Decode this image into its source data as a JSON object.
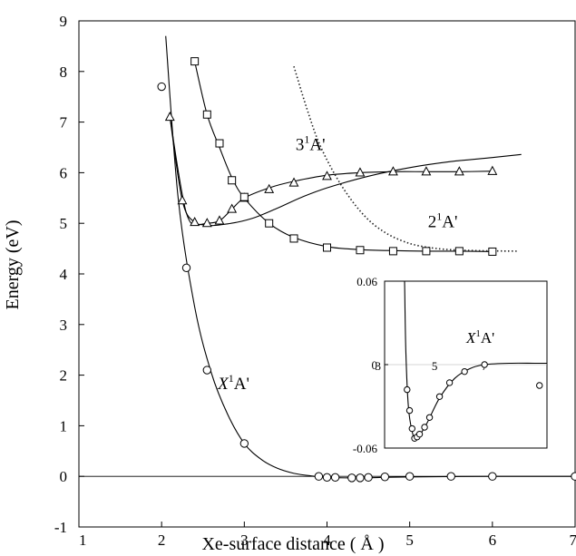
{
  "chart_data": {
    "type": "scatter",
    "xlabel": "Xe-surface distance ( Å )",
    "ylabel": "Energy (eV)",
    "xlim": [
      1,
      7
    ],
    "ylim": [
      -1,
      9
    ],
    "x_ticks": [
      "1",
      "2",
      "3",
      "4",
      "5",
      "6",
      "7"
    ],
    "y_ticks": [
      "-1",
      "0",
      "1",
      "2",
      "3",
      "4",
      "5",
      "6",
      "7",
      "8",
      "9"
    ],
    "grid": false,
    "legend": "none",
    "series": [
      {
        "name": "X¹A'",
        "marker": "circle",
        "points": [
          [
            2.0,
            7.7
          ],
          [
            2.3,
            4.12
          ],
          [
            2.55,
            2.1
          ],
          [
            3.0,
            0.65
          ],
          [
            3.9,
            0.0
          ],
          [
            4.0,
            -0.02
          ],
          [
            4.1,
            -0.02
          ],
          [
            4.3,
            -0.03
          ],
          [
            4.4,
            -0.03
          ],
          [
            4.5,
            -0.02
          ],
          [
            4.7,
            -0.01
          ],
          [
            5.0,
            0.0
          ],
          [
            5.5,
            0.0
          ],
          [
            6.0,
            0.0
          ],
          [
            7.0,
            0.0
          ]
        ],
        "fit": [
          [
            2.05,
            8.7
          ],
          [
            2.2,
            5.5
          ],
          [
            2.4,
            3.35
          ],
          [
            2.6,
            2.05
          ],
          [
            2.8,
            1.22
          ],
          [
            3.0,
            0.65
          ],
          [
            3.2,
            0.34
          ],
          [
            3.4,
            0.16
          ],
          [
            3.6,
            0.06
          ],
          [
            3.8,
            0.01
          ],
          [
            4.0,
            -0.02
          ],
          [
            4.4,
            -0.03
          ],
          [
            5.0,
            -0.01
          ],
          [
            6.0,
            0.0
          ],
          [
            7.0,
            0.0
          ]
        ]
      },
      {
        "name": "3¹A'",
        "marker": "triangle",
        "points": [
          [
            2.1,
            7.1
          ],
          [
            2.25,
            5.45
          ],
          [
            2.4,
            5.02
          ],
          [
            2.55,
            5.0
          ],
          [
            2.7,
            5.05
          ],
          [
            2.85,
            5.28
          ],
          [
            3.0,
            5.5
          ],
          [
            3.3,
            5.67
          ],
          [
            3.6,
            5.8
          ],
          [
            4.0,
            5.93
          ],
          [
            4.4,
            6.0
          ],
          [
            4.8,
            6.02
          ],
          [
            5.2,
            6.02
          ],
          [
            5.6,
            6.02
          ],
          [
            6.0,
            6.03
          ]
        ],
        "fit": [
          [
            2.1,
            7.1
          ],
          [
            2.25,
            5.45
          ],
          [
            2.4,
            5.02
          ],
          [
            2.55,
            5.0
          ],
          [
            2.7,
            5.05
          ],
          [
            2.85,
            5.28
          ],
          [
            3.0,
            5.5
          ],
          [
            3.3,
            5.7
          ],
          [
            3.6,
            5.83
          ],
          [
            4.0,
            5.95
          ],
          [
            4.4,
            6.0
          ],
          [
            4.8,
            6.02
          ],
          [
            5.2,
            6.02
          ],
          [
            5.6,
            6.02
          ],
          [
            6.0,
            6.03
          ]
        ]
      },
      {
        "name": "2¹A'",
        "marker": "square",
        "points": [
          [
            2.4,
            8.2
          ],
          [
            2.55,
            7.15
          ],
          [
            2.7,
            6.58
          ],
          [
            2.85,
            5.85
          ],
          [
            3.0,
            5.52
          ],
          [
            3.3,
            5.0
          ],
          [
            3.6,
            4.7
          ],
          [
            4.0,
            4.52
          ],
          [
            4.4,
            4.47
          ],
          [
            4.8,
            4.45
          ],
          [
            5.2,
            4.45
          ],
          [
            5.6,
            4.45
          ],
          [
            6.0,
            4.44
          ]
        ],
        "fit": [
          [
            2.4,
            8.2
          ],
          [
            2.55,
            7.15
          ],
          [
            2.7,
            6.5
          ],
          [
            2.85,
            5.9
          ],
          [
            3.0,
            5.5
          ],
          [
            3.3,
            5.0
          ],
          [
            3.6,
            4.72
          ],
          [
            4.0,
            4.54
          ],
          [
            4.4,
            4.48
          ],
          [
            4.8,
            4.46
          ],
          [
            5.2,
            4.45
          ],
          [
            5.6,
            4.45
          ],
          [
            6.0,
            4.44
          ]
        ]
      },
      {
        "name": "solid-curve-upper",
        "marker": "none",
        "fit": [
          [
            2.1,
            7.1
          ],
          [
            2.3,
            5.2
          ],
          [
            2.5,
            4.97
          ],
          [
            2.8,
            4.99
          ],
          [
            3.1,
            5.1
          ],
          [
            3.4,
            5.3
          ],
          [
            3.7,
            5.52
          ],
          [
            4.0,
            5.7
          ],
          [
            4.5,
            5.93
          ],
          [
            5.0,
            6.1
          ],
          [
            5.5,
            6.22
          ],
          [
            6.0,
            6.3
          ],
          [
            6.35,
            6.36
          ]
        ]
      },
      {
        "name": "dotted-curve",
        "marker": "none",
        "dotted": true,
        "fit": [
          [
            3.6,
            8.1
          ],
          [
            3.75,
            7.3
          ],
          [
            3.9,
            6.6
          ],
          [
            4.1,
            5.95
          ],
          [
            4.3,
            5.45
          ],
          [
            4.5,
            5.07
          ],
          [
            4.7,
            4.82
          ],
          [
            4.9,
            4.66
          ],
          [
            5.1,
            4.56
          ],
          [
            5.4,
            4.49
          ],
          [
            5.8,
            4.46
          ],
          [
            6.3,
            4.45
          ]
        ]
      }
    ],
    "annotations": [
      {
        "base": "3",
        "sup": "1",
        "rest": "A'",
        "x": 3.62,
        "y": 6.45
      },
      {
        "base": "2",
        "sup": "1",
        "rest": "A'",
        "x": 5.22,
        "y": 4.92
      },
      {
        "base": "X",
        "sup": "1",
        "rest": "A'",
        "italic": true,
        "x": 2.68,
        "y": 1.72
      }
    ],
    "inset": {
      "xlim": [
        3,
        9.5
      ],
      "ylim": [
        -0.06,
        0.06
      ],
      "x_ticks": [
        "3",
        "5",
        "7"
      ],
      "y_ticks": [
        "0.06",
        "0",
        "-0.06"
      ],
      "label": {
        "base": "X",
        "sup": "1",
        "rest": "A'"
      },
      "points": [
        [
          3.9,
          -0.018
        ],
        [
          4.0,
          -0.033
        ],
        [
          4.1,
          -0.046
        ],
        [
          4.2,
          -0.053
        ],
        [
          4.3,
          -0.052
        ],
        [
          4.4,
          -0.05
        ],
        [
          4.6,
          -0.045
        ],
        [
          4.8,
          -0.038
        ],
        [
          5.2,
          -0.023
        ],
        [
          5.6,
          -0.013
        ],
        [
          6.2,
          -0.005
        ],
        [
          7.0,
          0.0
        ],
        [
          9.2,
          -0.015
        ]
      ],
      "fit": [
        [
          3.8,
          0.06
        ],
        [
          3.85,
          0.01
        ],
        [
          3.95,
          -0.03
        ],
        [
          4.1,
          -0.048
        ],
        [
          4.25,
          -0.054
        ],
        [
          4.4,
          -0.051
        ],
        [
          4.7,
          -0.042
        ],
        [
          5.2,
          -0.024
        ],
        [
          5.8,
          -0.01
        ],
        [
          6.4,
          -0.003
        ],
        [
          7.0,
          0.0
        ],
        [
          8.0,
          0.001
        ],
        [
          9.0,
          0.001
        ],
        [
          9.5,
          0.001
        ]
      ]
    }
  }
}
